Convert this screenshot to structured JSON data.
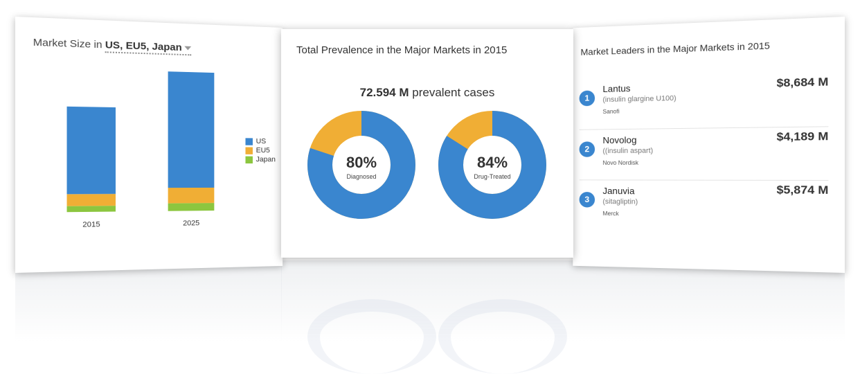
{
  "market_size": {
    "title_prefix": "Market Size in",
    "region_selector": "US, EU5, Japan"
  },
  "chart_data": {
    "type": "bar",
    "stacked": true,
    "categories": [
      "2015",
      "2025"
    ],
    "series": [
      {
        "name": "US",
        "color": "#3a86cf",
        "values": [
          22,
          30
        ]
      },
      {
        "name": "EU5",
        "color": "#f0ae35",
        "values": [
          3,
          4
        ]
      },
      {
        "name": "Japan",
        "color": "#8cc63f",
        "values": [
          1.5,
          2
        ]
      }
    ],
    "legend_position": "right",
    "grid": false,
    "ylim": [
      0,
      36
    ]
  },
  "prevalence": {
    "title": "Total Prevalence in the Major Markets in 2015",
    "total_value": "72.594 M",
    "total_suffix": "prevalent cases",
    "donuts": [
      {
        "percent_text": "80%",
        "percent": 80,
        "label": "Diagnosed",
        "primary_color": "#3a86cf",
        "secondary_color": "#f0ae35"
      },
      {
        "percent_text": "84%",
        "percent": 84,
        "label": "Drug-Treated",
        "primary_color": "#3a86cf",
        "secondary_color": "#f0ae35"
      }
    ]
  },
  "leaders": {
    "title": "Market Leaders in the Major Markets in 2015",
    "items": [
      {
        "rank": "1",
        "name": "Lantus",
        "generic": "(insulin glargine U100)",
        "company": "Sanofi",
        "sales": "$8,684 M"
      },
      {
        "rank": "2",
        "name": "Novolog",
        "generic": "((insulin aspart)",
        "company": "Novo Nordisk",
        "sales": "$4,189 M"
      },
      {
        "rank": "3",
        "name": "Januvia",
        "generic": "(sitagliptin)",
        "company": "Merck",
        "sales": "$5,874 M"
      }
    ]
  }
}
